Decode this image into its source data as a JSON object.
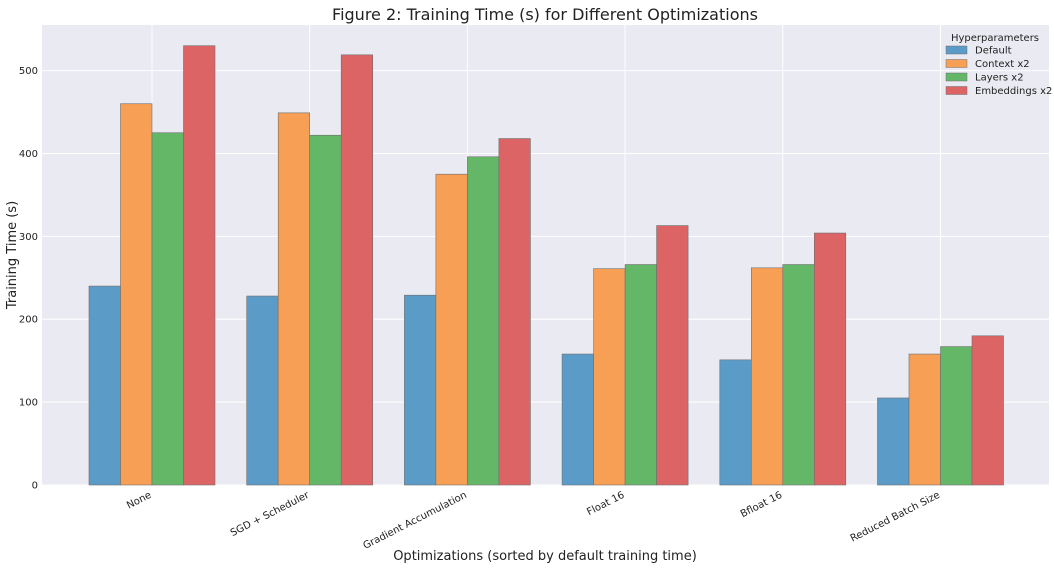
{
  "chart_data": {
    "type": "bar",
    "title": "Figure 2: Training Time (s) for Different Optimizations",
    "xlabel": "Optimizations (sorted by default training time)",
    "ylabel": "Training Time (s)",
    "categories": [
      "None",
      "SGD + Scheduler",
      "Gradient Accumulation",
      "Float 16",
      "Bfloat 16",
      "Reduced Batch Size"
    ],
    "ylim": [
      0,
      555
    ],
    "yticks": [
      0,
      100,
      200,
      300,
      400,
      500
    ],
    "grid": true,
    "legend": {
      "title": "Hyperparameters",
      "placement": "top-right"
    },
    "series": [
      {
        "name": "Default",
        "color": "#5b9bc8",
        "values": [
          240,
          228,
          229,
          158,
          151,
          105
        ]
      },
      {
        "name": "Context x2",
        "color": "#f89f56",
        "values": [
          460,
          449,
          375,
          261,
          262,
          158
        ]
      },
      {
        "name": "Layers x2",
        "color": "#65b768",
        "values": [
          425,
          422,
          396,
          266,
          266,
          167
        ]
      },
      {
        "name": "Embeddings x2",
        "color": "#dd6465",
        "values": [
          530,
          519,
          418,
          313,
          304,
          180
        ]
      }
    ],
    "colors": {
      "plot_background": "#eaeaf2",
      "grid": "#ffffff",
      "bar_edge": "#6e6e6e"
    }
  }
}
